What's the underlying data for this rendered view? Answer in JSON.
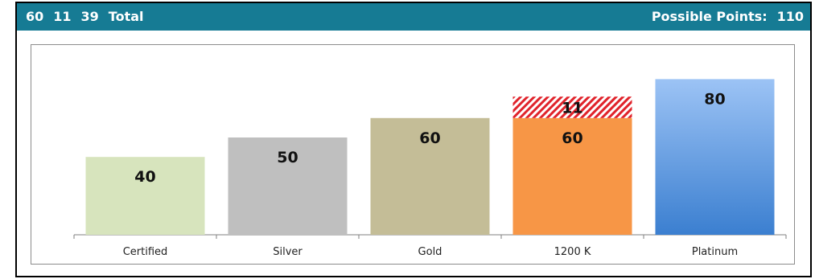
{
  "header": {
    "stats": [
      "60",
      "11",
      "39",
      "Total"
    ],
    "possible_label": "Possible Points:",
    "possible_value": "110"
  },
  "colors": {
    "header_bg": "#167b94",
    "certified": "#d7e4bd",
    "silver": "#bfbfbf",
    "gold": "#c4bd97",
    "k1200": "#f79646",
    "k1200_extra": "#e0232b",
    "platinum_top": "#9cc3f5",
    "platinum_bottom": "#3b7fd0"
  },
  "chart_data": {
    "type": "bar",
    "categories": [
      "Certified",
      "Silver",
      "Gold",
      "1200 K",
      "Platinum"
    ],
    "series": [
      {
        "values": [
          40,
          50,
          60,
          60,
          80
        ]
      },
      {
        "values": [
          0,
          0,
          0,
          11,
          0
        ]
      }
    ],
    "value_labels": [
      "40",
      "50",
      "60",
      "60",
      "80"
    ],
    "extra_labels": [
      "",
      "",
      "",
      "11",
      ""
    ],
    "ylim": [
      0,
      100
    ],
    "grid": false,
    "legend": "none"
  }
}
